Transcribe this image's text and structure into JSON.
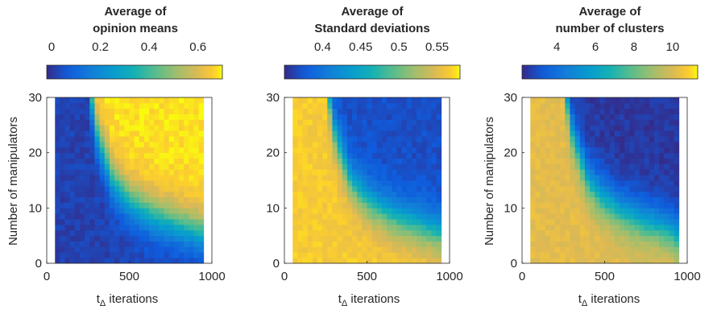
{
  "chart_data": [
    {
      "type": "heatmap",
      "title": [
        "Average of",
        "opinion means"
      ],
      "xlabel": "t",
      "xlabel_sub": "Δ",
      "xlabel_suffix": " iterations",
      "ylabel": "Number of manipulators",
      "xlim": [
        0,
        1000
      ],
      "ylim": [
        0,
        30
      ],
      "x_ticks": [
        "0",
        "500",
        "1000"
      ],
      "y_ticks": [
        "0",
        "10",
        "20",
        "30"
      ],
      "colorbar_range": [
        -0.02,
        0.7
      ],
      "colorbar_ticks": [
        "0",
        "0.2",
        "0.4",
        "0.6"
      ],
      "grid_x": [
        50,
        950
      ],
      "grid_y": [
        0,
        30
      ],
      "high_region": "above-curve",
      "low_value": 0.02,
      "high_value": 0.68,
      "boundary_points": [
        [
          270,
          30
        ],
        [
          300,
          24
        ],
        [
          400,
          15
        ],
        [
          500,
          11.5
        ],
        [
          600,
          9.5
        ],
        [
          700,
          8
        ],
        [
          800,
          7
        ],
        [
          900,
          6
        ],
        [
          950,
          5.5
        ]
      ]
    },
    {
      "type": "heatmap",
      "title": [
        "Average of",
        "Standard deviations"
      ],
      "xlabel": "t",
      "xlabel_sub": "Δ",
      "xlabel_suffix": " iterations",
      "ylabel": "",
      "xlim": [
        0,
        1000
      ],
      "ylim": [
        0,
        30
      ],
      "x_ticks": [
        "0",
        "500",
        "1000"
      ],
      "y_ticks": [
        "0",
        "10",
        "20",
        "30"
      ],
      "colorbar_range": [
        0.35,
        0.58
      ],
      "colorbar_ticks": [
        "0.4",
        "0.45",
        "0.5",
        "0.55"
      ],
      "grid_x": [
        50,
        950
      ],
      "grid_y": [
        0,
        30
      ],
      "high_region": "below-curve",
      "low_value": 0.37,
      "high_value": 0.565,
      "boundary_points": [
        [
          270,
          30
        ],
        [
          300,
          24
        ],
        [
          400,
          15
        ],
        [
          500,
          11.5
        ],
        [
          600,
          9.5
        ],
        [
          700,
          8
        ],
        [
          800,
          7
        ],
        [
          900,
          6
        ],
        [
          950,
          5.5
        ]
      ]
    },
    {
      "type": "heatmap",
      "title": [
        "Average of",
        "number of clusters"
      ],
      "xlabel": "t",
      "xlabel_sub": "Δ",
      "xlabel_suffix": " iterations",
      "ylabel": "Number of manipulators",
      "xlim": [
        0,
        1000
      ],
      "ylim": [
        0,
        30
      ],
      "x_ticks": [
        "0",
        "500",
        "1000"
      ],
      "y_ticks": [
        "0",
        "10",
        "20",
        "30"
      ],
      "colorbar_range": [
        2.2,
        11.3
      ],
      "colorbar_ticks": [
        "4",
        "6",
        "8",
        "10"
      ],
      "grid_x": [
        50,
        950
      ],
      "grid_y": [
        0,
        30
      ],
      "high_region": "below-curve",
      "low_value": 2.5,
      "high_value": 10.2,
      "boundary_points": [
        [
          270,
          30
        ],
        [
          300,
          24
        ],
        [
          400,
          15
        ],
        [
          500,
          11.5
        ],
        [
          600,
          9.5
        ],
        [
          700,
          8
        ],
        [
          800,
          7
        ],
        [
          900,
          6
        ],
        [
          950,
          4.5
        ]
      ]
    }
  ]
}
